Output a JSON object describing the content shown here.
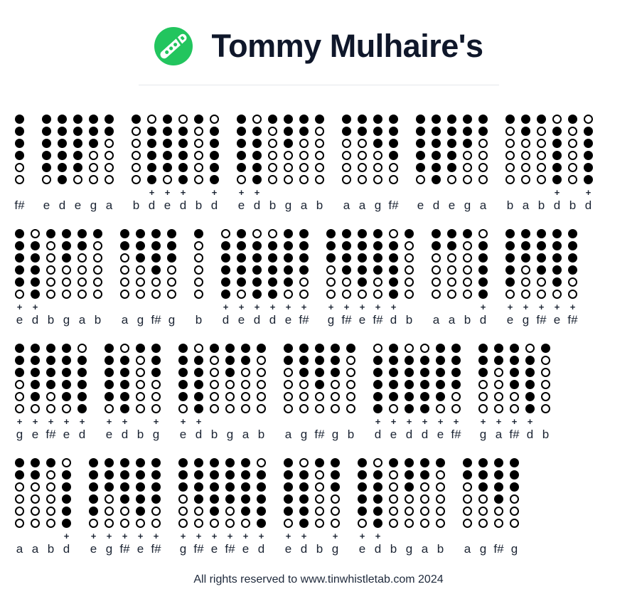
{
  "header": {
    "title": "Tommy Mulhaire's",
    "logo_color": "#22c55e",
    "logo_icon": "tin-whistle-icon"
  },
  "tab": {
    "plus_symbol": "+",
    "hole_color": "#000000",
    "fingerings": {
      "d": [
        1,
        1,
        1,
        1,
        1,
        1
      ],
      "d+": [
        0,
        1,
        1,
        1,
        1,
        1
      ],
      "e": [
        1,
        1,
        1,
        1,
        1,
        0
      ],
      "f#": [
        1,
        1,
        1,
        1,
        0,
        0
      ],
      "g": [
        1,
        1,
        1,
        0,
        0,
        0
      ],
      "a": [
        1,
        1,
        0,
        0,
        0,
        0
      ],
      "b": [
        1,
        0,
        0,
        0,
        0,
        0
      ]
    },
    "rows": [
      [
        [
          "f#"
        ],
        [
          "e",
          "d",
          "e",
          "g",
          "a"
        ],
        [
          "b",
          "d+",
          "e+",
          "d+",
          "b",
          "d+"
        ],
        [
          "e+",
          "d+",
          "b",
          "g",
          "a",
          "b"
        ],
        [
          "a",
          "a",
          "g",
          "f#"
        ],
        [
          "e",
          "d",
          "e",
          "g",
          "a"
        ],
        [
          "b",
          "a",
          "b",
          "d+",
          "b",
          "d+"
        ]
      ],
      [
        [
          "e+",
          "d+",
          "b",
          "g",
          "a",
          "b"
        ],
        [
          "a",
          "g",
          "f#",
          "g"
        ],
        [
          "b"
        ],
        [
          "d+",
          "e+",
          "d+",
          "d+",
          "e+",
          "f#+"
        ],
        [
          "g+",
          "f#+",
          "e+",
          "f#+",
          "d+",
          "b"
        ],
        [
          "a",
          "a",
          "b",
          "d+"
        ],
        [
          "e+",
          "g+",
          "f#+",
          "e+",
          "f#+"
        ]
      ],
      [
        [
          "g+",
          "e+",
          "f#+",
          "e+",
          "d+"
        ],
        [
          "e+",
          "d+",
          "b",
          "g+"
        ],
        [
          "e+",
          "d+",
          "b",
          "g",
          "a",
          "b"
        ],
        [
          "a",
          "g",
          "f#",
          "g",
          "b"
        ],
        [
          "d+",
          "e+",
          "d+",
          "d+",
          "e+",
          "f#+"
        ],
        [
          "g+",
          "a+",
          "f#+",
          "d+",
          "b"
        ]
      ],
      [
        [
          "a",
          "a",
          "b",
          "d+"
        ],
        [
          "e+",
          "g+",
          "f#+",
          "e+",
          "f#+"
        ],
        [
          "g+",
          "f#+",
          "e+",
          "f#+",
          "e+",
          "d+"
        ],
        [
          "e+",
          "d+",
          "b",
          "g+"
        ],
        [
          "e+",
          "d+",
          "b",
          "g",
          "a",
          "b"
        ],
        [
          "a",
          "g",
          "f#",
          "g"
        ]
      ]
    ]
  },
  "footer": {
    "text": "All rights reserved to www.tinwhistletab.com 2024"
  }
}
